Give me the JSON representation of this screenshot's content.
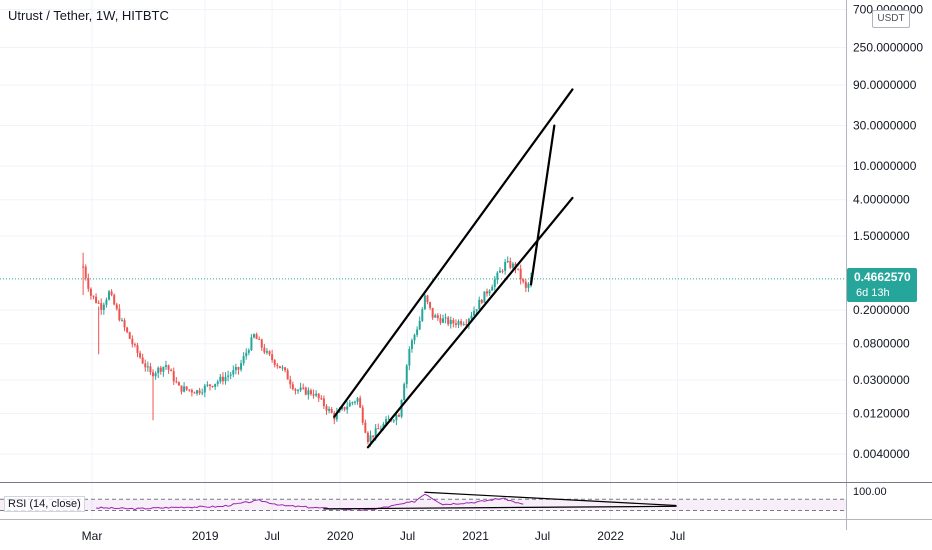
{
  "chart_data": {
    "type": "candlestick",
    "title": "Utrust / Tether, 1W, HITBTC",
    "currency": "USDT",
    "scale": "log",
    "y_ticks": [
      "700.0000000",
      "250.0000000",
      "90.0000000",
      "30.0000000",
      "10.0000000",
      "4.0000000",
      "1.5000000",
      "0.2000000",
      "0.0800000",
      "0.0300000",
      "0.0120000",
      "0.0040000"
    ],
    "x_ticks": [
      "Mar",
      "2019",
      "Jul",
      "2020",
      "Jul",
      "2021",
      "Jul",
      "2022",
      "Jul"
    ],
    "last_price": "0.4662570",
    "countdown": "6d 13h",
    "colors": {
      "up": "#26a69a",
      "down": "#ef5350",
      "rsi": "#9c27b0",
      "price_line": "#26a69a"
    },
    "series": [
      {
        "name": "price",
        "waypoints": [
          [
            "2018-02-05",
            0.65
          ],
          [
            "2018-02-26",
            0.3
          ],
          [
            "2018-03-26",
            0.22
          ],
          [
            "2018-04-16",
            0.32
          ],
          [
            "2018-05-21",
            0.14
          ],
          [
            "2018-06-25",
            0.07
          ],
          [
            "2018-08-06",
            0.035
          ],
          [
            "2018-09-17",
            0.045
          ],
          [
            "2018-10-22",
            0.024
          ],
          [
            "2018-12-10",
            0.022
          ],
          [
            "2019-02-11",
            0.03
          ],
          [
            "2019-04-01",
            0.04
          ],
          [
            "2019-05-13",
            0.1
          ],
          [
            "2019-06-17",
            0.06
          ],
          [
            "2019-07-29",
            0.04
          ],
          [
            "2019-09-02",
            0.023
          ],
          [
            "2019-10-21",
            0.021
          ],
          [
            "2019-12-16",
            0.011
          ],
          [
            "2020-01-20",
            0.015
          ],
          [
            "2020-02-17",
            0.018
          ],
          [
            "2020-03-16",
            0.006
          ],
          [
            "2020-05-11",
            0.01
          ],
          [
            "2020-06-08",
            0.012
          ],
          [
            "2020-07-06",
            0.07
          ],
          [
            "2020-08-03",
            0.15
          ],
          [
            "2020-08-17",
            0.28
          ],
          [
            "2020-09-07",
            0.17
          ],
          [
            "2020-10-26",
            0.14
          ],
          [
            "2020-12-07",
            0.15
          ],
          [
            "2021-01-04",
            0.22
          ],
          [
            "2021-02-22",
            0.45
          ],
          [
            "2021-03-22",
            0.7
          ],
          [
            "2021-04-19",
            0.65
          ],
          [
            "2021-05-17",
            0.35
          ],
          [
            "2021-05-31",
            0.466
          ]
        ]
      },
      {
        "name": "RSI (14, close)",
        "waypoints": [
          [
            "2018-03-12",
            40
          ],
          [
            "2018-06-25",
            36
          ],
          [
            "2018-10-22",
            42
          ],
          [
            "2019-02-11",
            44
          ],
          [
            "2019-05-27",
            66
          ],
          [
            "2019-07-29",
            48
          ],
          [
            "2019-11-18",
            38
          ],
          [
            "2020-03-16",
            32
          ],
          [
            "2020-05-11",
            44
          ],
          [
            "2020-07-20",
            62
          ],
          [
            "2020-08-17",
            90
          ],
          [
            "2020-10-05",
            52
          ],
          [
            "2021-01-04",
            60
          ],
          [
            "2021-03-15",
            74
          ],
          [
            "2021-05-17",
            48
          ]
        ]
      }
    ],
    "rsi_levels": {
      "upper": 70,
      "lower": 30
    },
    "rsi_ticks": [
      "100.00"
    ],
    "rsi_label": "RSI (14, close)",
    "trendlines": [
      {
        "from": [
          "2019-12-16",
          0.011
        ],
        "to": [
          "2021-09-20",
          80
        ]
      },
      {
        "from": [
          "2020-03-16",
          0.0048
        ],
        "to": [
          "2021-09-20",
          4.2
        ]
      },
      {
        "from": [
          "2021-05-31",
          0.4
        ],
        "to": [
          "2021-08-02",
          30
        ]
      },
      {
        "from": [
          "2020-08-17",
          95
        ],
        "to": [
          "2022-06-27",
          48
        ],
        "panel": "rsi"
      },
      {
        "from": [
          "2019-11-18",
          36
        ],
        "to": [
          "2022-06-27",
          45
        ],
        "panel": "rsi"
      }
    ]
  }
}
